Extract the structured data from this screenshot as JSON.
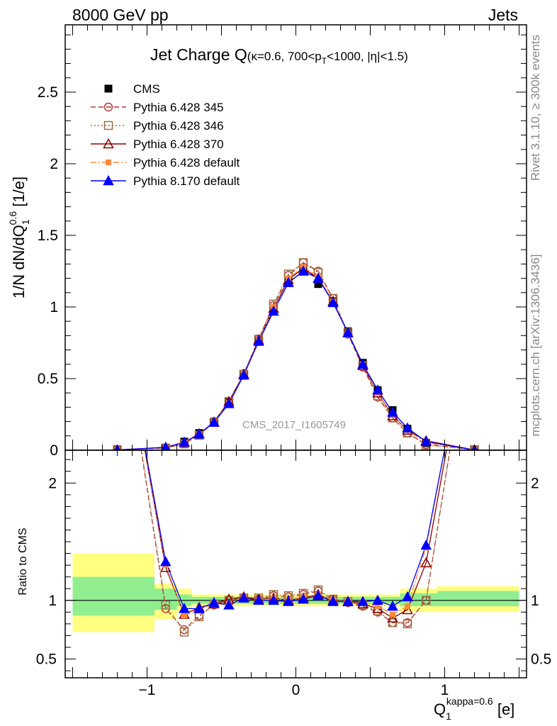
{
  "header": {
    "left": "8000 GeV pp",
    "right": "Jets",
    "side_top": "Rivet 3.1.10, ≥ 300k events",
    "side_bottom": "mcplots.cern.ch [arXiv:1306.3436]",
    "watermark": "CMS_2017_I1605749"
  },
  "chart_data": [
    {
      "type": "line",
      "title_main": "Jet Charge Q",
      "title_sub": "(κ=0.6, 700<p",
      "title_sub_index": "T",
      "title_sub_tail": "<1000, |η|<1.5)",
      "ylabel_main": "1/N dN/dQ",
      "ylabel_sub": "1",
      "ylabel_sup": "0.6",
      "ylabel_unit": " [1/e]",
      "xlim": [
        -1.55,
        1.55
      ],
      "ylim": [
        0,
        2.97
      ],
      "yticks": [
        "0",
        "0.5",
        "1",
        "1.5",
        "2",
        "2.5"
      ],
      "ytick_values": [
        0,
        0.5,
        1,
        1.5,
        2,
        2.5
      ],
      "legend_position": "top-left",
      "x": [
        -1.2,
        -0.875,
        -0.75,
        -0.65,
        -0.55,
        -0.45,
        -0.35,
        -0.25,
        -0.15,
        -0.05,
        0.05,
        0.15,
        0.25,
        0.35,
        0.45,
        0.55,
        0.65,
        0.75,
        0.875,
        1.2
      ],
      "series": [
        {
          "name": "CMS",
          "color": "#000000",
          "marker": "filled-square",
          "line": "none",
          "values": [
            0.001,
            0.015,
            0.06,
            0.12,
            0.2,
            0.34,
            0.52,
            0.76,
            0.97,
            1.18,
            1.25,
            1.16,
            1.04,
            0.83,
            0.61,
            0.42,
            0.28,
            0.15,
            0.05,
            0.001
          ]
        },
        {
          "name": "Pythia 6.428 345",
          "color": "#b03a3a",
          "marker": "open-circle",
          "line": "dashed",
          "values": [
            0.004,
            0.015,
            0.045,
            0.105,
            0.2,
            0.34,
            0.535,
            0.775,
            1.01,
            1.22,
            1.31,
            1.25,
            1.06,
            0.81,
            0.58,
            0.37,
            0.225,
            0.12,
            0.04,
            0.004
          ]
        },
        {
          "name": "Pythia 6.428 346",
          "color": "#a07040",
          "marker": "open-square",
          "line": "dotted",
          "values": [
            0.004,
            0.015,
            0.044,
            0.104,
            0.195,
            0.34,
            0.53,
            0.775,
            1.02,
            1.23,
            1.31,
            1.24,
            1.06,
            0.82,
            0.59,
            0.38,
            0.225,
            0.12,
            0.035,
            0.004
          ]
        },
        {
          "name": "Pythia 6.428 370",
          "color": "#8b0000",
          "marker": "open-triangle",
          "line": "solid",
          "values": [
            0.002,
            0.02,
            0.053,
            0.115,
            0.195,
            0.34,
            0.53,
            0.77,
            0.99,
            1.19,
            1.27,
            1.2,
            1.04,
            0.82,
            0.59,
            0.4,
            0.24,
            0.14,
            0.066,
            0.002
          ]
        },
        {
          "name": "Pythia 6.428 default",
          "color": "#ff8a3a",
          "marker": "filled-square",
          "line": "dashdot",
          "values": [
            0.003,
            0.018,
            0.052,
            0.11,
            0.195,
            0.33,
            0.53,
            0.765,
            1.0,
            1.2,
            1.28,
            1.21,
            1.04,
            0.82,
            0.6,
            0.4,
            0.245,
            0.14,
            0.05,
            0.003
          ]
        },
        {
          "name": "Pythia 8.170 default",
          "color": "#0000ff",
          "marker": "filled-triangle",
          "line": "solid",
          "values": [
            0.001,
            0.02,
            0.056,
            0.112,
            0.195,
            0.325,
            0.525,
            0.76,
            0.97,
            1.17,
            1.25,
            1.2,
            1.03,
            0.82,
            0.6,
            0.42,
            0.265,
            0.155,
            0.06,
            0.001
          ]
        }
      ]
    },
    {
      "type": "line",
      "ylabel": "Ratio to CMS",
      "xlabel_main": "Q",
      "xlabel_sub": "1",
      "xlabel_sup": "kappa=0.6",
      "xlabel_unit": " [e]",
      "xlim": [
        -1.55,
        1.55
      ],
      "ylim": [
        0.34,
        2.28
      ],
      "yticks": [
        "0.5",
        "1",
        "2"
      ],
      "ytick_values": [
        0.5,
        1,
        2
      ],
      "xticks": [
        "−1",
        "0",
        "1"
      ],
      "xtick_values": [
        -1,
        0,
        1
      ],
      "reference_line": 1,
      "bands": [
        {
          "x0": -1.5,
          "x1": -0.95,
          "stat_lo": 0.87,
          "stat_hi": 1.2,
          "tot_lo": 0.73,
          "tot_hi": 1.4
        },
        {
          "x0": -0.95,
          "x1": -0.8,
          "stat_lo": 0.92,
          "stat_hi": 1.1,
          "tot_lo": 0.84,
          "tot_hi": 1.14
        },
        {
          "x0": -0.8,
          "x1": -0.7,
          "stat_lo": 0.95,
          "stat_hi": 1.05,
          "tot_lo": 0.9,
          "tot_hi": 1.1
        },
        {
          "x0": -0.7,
          "x1": 0.7,
          "stat_lo": 0.97,
          "stat_hi": 1.03,
          "tot_lo": 0.95,
          "tot_hi": 1.05
        },
        {
          "x0": 0.7,
          "x1": 0.95,
          "stat_lo": 0.95,
          "stat_hi": 1.06,
          "tot_lo": 0.9,
          "tot_hi": 1.1
        },
        {
          "x0": 0.95,
          "x1": 1.5,
          "stat_lo": 0.95,
          "stat_hi": 1.08,
          "tot_lo": 0.9,
          "tot_hi": 1.12
        }
      ],
      "x": [
        -0.875,
        -0.75,
        -0.65,
        -0.55,
        -0.45,
        -0.35,
        -0.25,
        -0.15,
        -0.05,
        0.05,
        0.15,
        0.25,
        0.35,
        0.45,
        0.55,
        0.65,
        0.75,
        0.875
      ],
      "series": [
        {
          "name": "Pythia 6.428 345",
          "values": [
            0.93,
            0.75,
            0.87,
            0.96,
            1.0,
            1.02,
            1.01,
            1.04,
            1.03,
            1.05,
            1.08,
            1.01,
            0.98,
            0.95,
            0.9,
            0.81,
            0.81,
            1.0
          ]
        },
        {
          "name": "Pythia 6.428 346",
          "values": [
            0.96,
            0.73,
            0.86,
            0.97,
            1.0,
            1.02,
            1.02,
            1.05,
            1.04,
            1.06,
            1.09,
            1.01,
            0.99,
            0.96,
            0.91,
            0.81,
            0.8,
            1.0
          ]
        },
        {
          "name": "Pythia 6.428 370",
          "values": [
            1.28,
            0.88,
            0.94,
            0.97,
            1.01,
            1.03,
            1.01,
            1.02,
            1.0,
            1.02,
            1.05,
            1.0,
            0.99,
            0.97,
            0.93,
            0.85,
            0.92,
            1.32
          ]
        },
        {
          "name": "Pythia 6.428 default",
          "values": [
            1.3,
            0.87,
            0.92,
            0.97,
            0.97,
            1.02,
            1.0,
            1.02,
            1.0,
            1.03,
            1.05,
            1.0,
            0.99,
            0.98,
            0.95,
            0.88,
            0.95,
            1.45
          ]
        },
        {
          "name": "Pythia 8.170 default",
          "values": [
            1.33,
            0.93,
            0.93,
            0.98,
            0.96,
            1.02,
            1.0,
            1.0,
            0.99,
            1.01,
            1.04,
            0.99,
            0.99,
            0.99,
            1.0,
            0.95,
            1.03,
            1.47
          ]
        }
      ]
    }
  ]
}
